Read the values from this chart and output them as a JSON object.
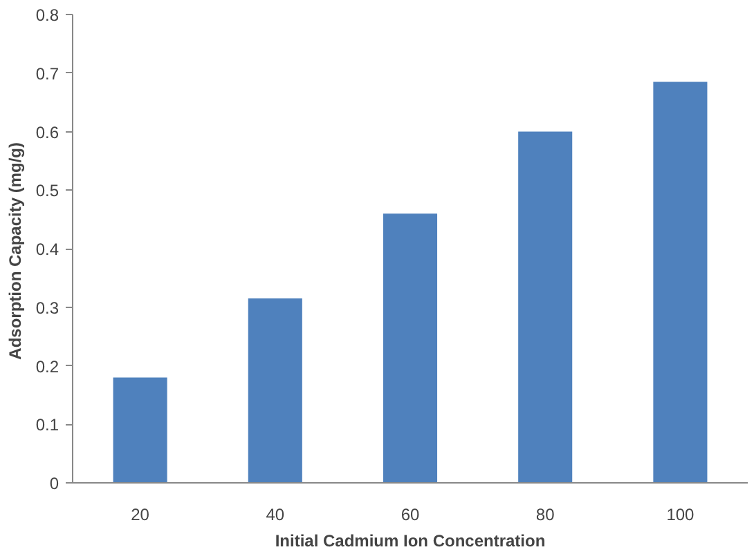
{
  "chart_data": {
    "type": "bar",
    "xlabel": "Initial Cadmium Ion Concentration",
    "ylabel": "Adsorption Capacity  (mg/g)",
    "categories": [
      "20",
      "40",
      "60",
      "80",
      "100"
    ],
    "values": [
      0.18,
      0.315,
      0.46,
      0.6,
      0.685
    ],
    "color": "#4f81bd",
    "ylim": [
      0,
      0.8
    ],
    "yticks": [
      0,
      0.1,
      0.2,
      0.3,
      0.4,
      0.5,
      0.6,
      0.7,
      0.8
    ],
    "grid": false
  }
}
